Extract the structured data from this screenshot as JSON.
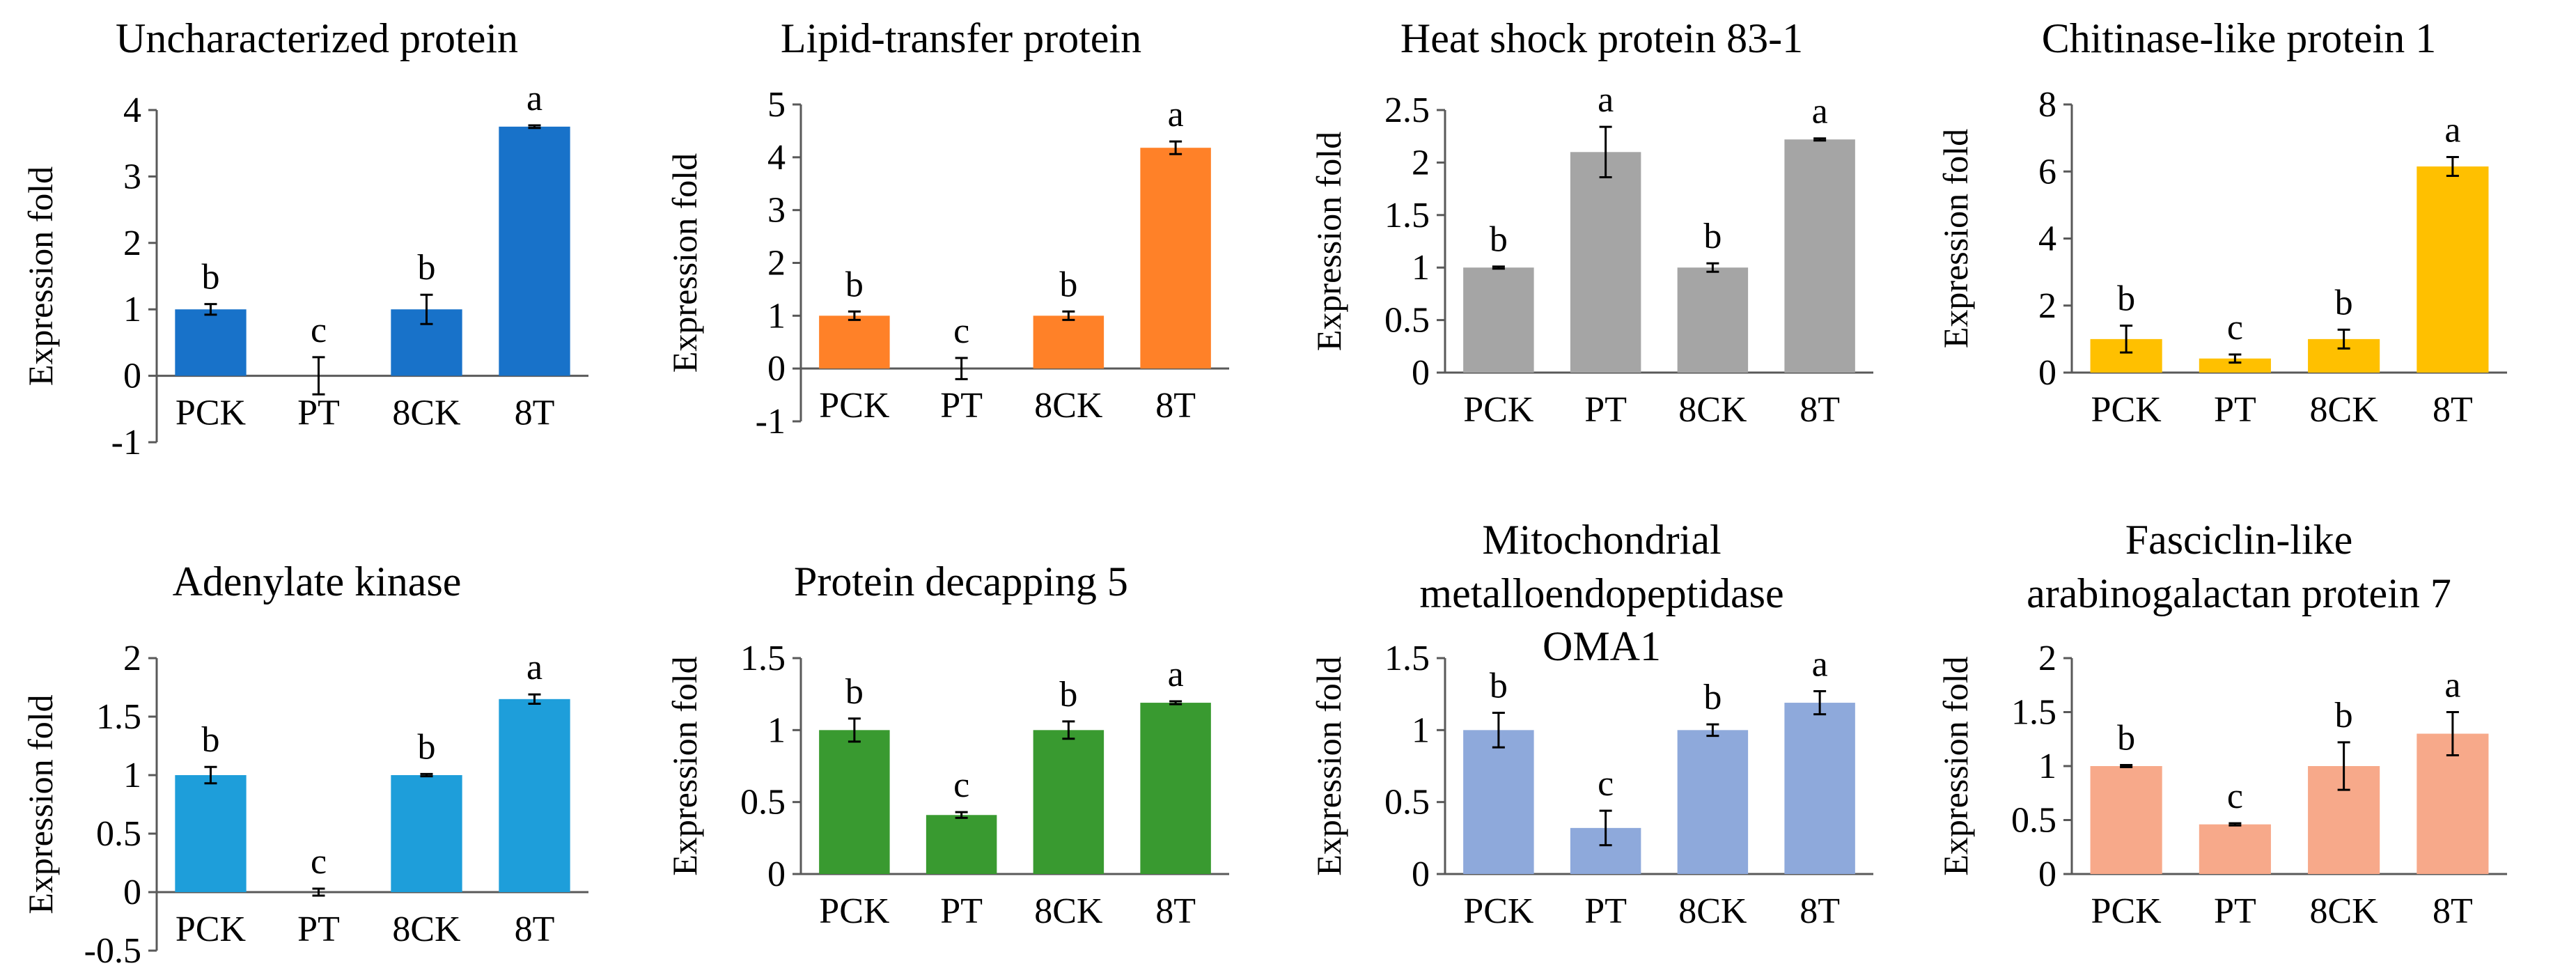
{
  "chart_data": [
    {
      "type": "bar",
      "title_lines": [
        "Uncharacterized protein"
      ],
      "ylabel": "Expression fold",
      "categories": [
        "PCK",
        "PT",
        "8CK",
        "8T"
      ],
      "values": [
        1.0,
        0.0,
        1.0,
        3.75
      ],
      "errors": [
        0.08,
        0.28,
        0.22,
        0.02
      ],
      "letters": [
        "b",
        "c",
        "b",
        "a"
      ],
      "ylim": [
        -1,
        4
      ],
      "yticks": [
        -1,
        0,
        1,
        2,
        3,
        4
      ],
      "ytick_labels": [
        "-1",
        "0",
        "1",
        "2",
        "3",
        "4"
      ],
      "color": "#1872C9"
    },
    {
      "type": "bar",
      "title_lines": [
        "Lipid-transfer protein"
      ],
      "ylabel": "Expression fold",
      "categories": [
        "PCK",
        "PT",
        "8CK",
        "8T"
      ],
      "values": [
        1.0,
        0.0,
        1.0,
        4.18
      ],
      "errors": [
        0.08,
        0.2,
        0.08,
        0.12
      ],
      "letters": [
        "b",
        "c",
        "b",
        "a"
      ],
      "ylim": [
        -1,
        5
      ],
      "yticks": [
        -1,
        0,
        1,
        2,
        3,
        4,
        5
      ],
      "ytick_labels": [
        "-1",
        "0",
        "1",
        "2",
        "3",
        "4",
        "5"
      ],
      "color": "#FF8128"
    },
    {
      "type": "bar",
      "title_lines": [
        "Heat shock protein 83-1"
      ],
      "ylabel": "Expression fold",
      "categories": [
        "PCK",
        "PT",
        "8CK",
        "8T"
      ],
      "values": [
        1.0,
        2.1,
        1.0,
        2.22
      ],
      "errors": [
        0.01,
        0.24,
        0.04,
        0.01
      ],
      "letters": [
        "b",
        "a",
        "b",
        "a"
      ],
      "ylim": [
        0,
        2.5
      ],
      "yticks": [
        0,
        0.5,
        1,
        1.5,
        2,
        2.5
      ],
      "ytick_labels": [
        "0",
        "0.5",
        "1",
        "1.5",
        "2",
        "2.5"
      ],
      "color": "#A5A5A5"
    },
    {
      "type": "bar",
      "title_lines": [
        "Chitinase-like protein 1"
      ],
      "ylabel": "Expression fold",
      "categories": [
        "PCK",
        "PT",
        "8CK",
        "8T"
      ],
      "values": [
        1.0,
        0.42,
        1.0,
        6.15
      ],
      "errors": [
        0.4,
        0.12,
        0.28,
        0.28
      ],
      "letters": [
        "b",
        "c",
        "b",
        "a"
      ],
      "ylim": [
        0,
        8
      ],
      "yticks": [
        0,
        2,
        4,
        6,
        8
      ],
      "ytick_labels": [
        "0",
        "2",
        "4",
        "6",
        "8"
      ],
      "color": "#FFC000"
    },
    {
      "type": "bar",
      "title_lines": [
        "Adenylate kinase"
      ],
      "ylabel": "Expression fold",
      "categories": [
        "PCK",
        "PT",
        "8CK",
        "8T"
      ],
      "values": [
        1.0,
        0.0,
        1.0,
        1.65
      ],
      "errors": [
        0.07,
        0.03,
        0.01,
        0.04
      ],
      "letters": [
        "b",
        "c",
        "b",
        "a"
      ],
      "ylim": [
        -0.5,
        2
      ],
      "yticks": [
        -0.5,
        0,
        0.5,
        1,
        1.5,
        2
      ],
      "ytick_labels": [
        "-0.5",
        "0",
        "0.5",
        "1",
        "1.5",
        "2"
      ],
      "color": "#1E9EDA"
    },
    {
      "type": "bar",
      "title_lines": [
        "Protein decapping 5"
      ],
      "ylabel": "Expression fold",
      "categories": [
        "PCK",
        "PT",
        "8CK",
        "8T"
      ],
      "values": [
        1.0,
        0.41,
        1.0,
        1.19
      ],
      "errors": [
        0.08,
        0.02,
        0.06,
        0.01
      ],
      "letters": [
        "b",
        "c",
        "b",
        "a"
      ],
      "ylim": [
        0,
        1.5
      ],
      "yticks": [
        0,
        0.5,
        1,
        1.5
      ],
      "ytick_labels": [
        "0",
        "0.5",
        "1",
        "1.5"
      ],
      "color": "#399A30"
    },
    {
      "type": "bar",
      "title_lines": [
        "Mitochondrial",
        "metalloendopeptidase",
        "OMA1"
      ],
      "ylabel": "Expression fold",
      "categories": [
        "PCK",
        "PT",
        "8CK",
        "8T"
      ],
      "values": [
        1.0,
        0.32,
        1.0,
        1.19
      ],
      "errors": [
        0.12,
        0.12,
        0.04,
        0.08
      ],
      "letters": [
        "b",
        "c",
        "b",
        "a"
      ],
      "ylim": [
        0,
        1.5
      ],
      "yticks": [
        0,
        0.5,
        1,
        1.5
      ],
      "ytick_labels": [
        "0",
        "0.5",
        "1",
        "1.5"
      ],
      "color": "#8EA9DB"
    },
    {
      "type": "bar",
      "title_lines": [
        "Fasciclin-like",
        "arabinogalactan protein 7"
      ],
      "ylabel": "Expression fold",
      "categories": [
        "PCK",
        "PT",
        "8CK",
        "8T"
      ],
      "values": [
        1.0,
        0.46,
        1.0,
        1.3
      ],
      "errors": [
        0.01,
        0.01,
        0.22,
        0.2
      ],
      "letters": [
        "b",
        "c",
        "b",
        "a"
      ],
      "ylim": [
        0,
        2
      ],
      "yticks": [
        0,
        0.5,
        1,
        1.5,
        2
      ],
      "ytick_labels": [
        "0",
        "0.5",
        "1",
        "1.5",
        "2"
      ],
      "color": "#F7A98A"
    }
  ]
}
